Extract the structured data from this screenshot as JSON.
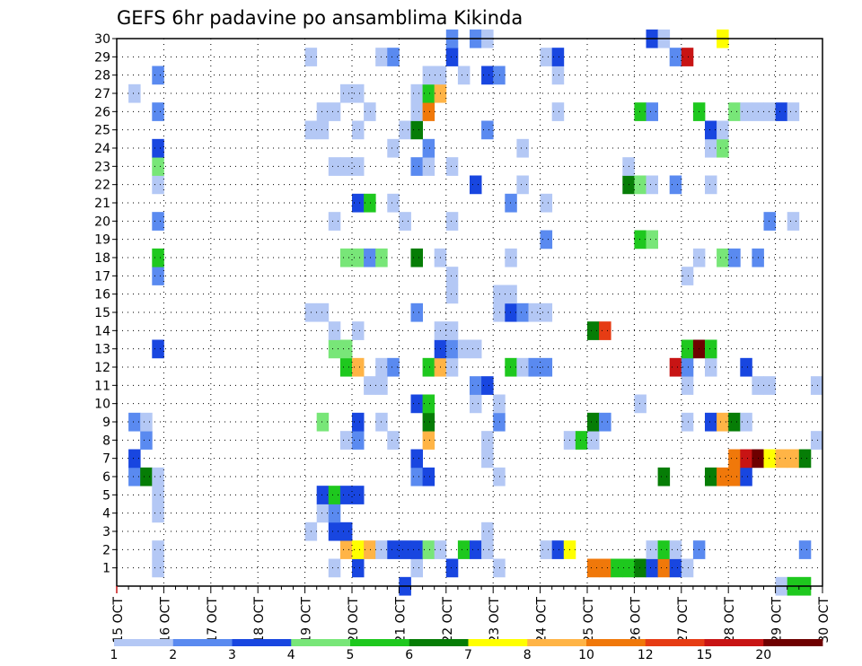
{
  "chart_data": {
    "type": "heatmap",
    "title": "GEFS 6hr padavine po ansamblima Kikinda",
    "xlabel": "",
    "ylabel": "",
    "x_ticks": [
      "15 OCT",
      "16 OCT",
      "17 OCT",
      "18 OCT",
      "19 OCT",
      "20 OCT",
      "21 OCT",
      "22 OCT",
      "23 OCT",
      "24 OCT",
      "25 OCT",
      "26 OCT",
      "27 OCT",
      "28 OCT",
      "29 OCT",
      "30 OCT"
    ],
    "y_ticks": [
      "1",
      "2",
      "3",
      "4",
      "5",
      "6",
      "7",
      "8",
      "9",
      "10",
      "11",
      "12",
      "13",
      "14",
      "15",
      "16",
      "17",
      "18",
      "19",
      "20",
      "21",
      "22",
      "23",
      "24",
      "25",
      "26",
      "27",
      "28",
      "29",
      "30"
    ],
    "xlim": [
      "15 OCT 00Z",
      "30 OCT 00Z"
    ],
    "ylim": [
      0,
      30
    ],
    "time_step_hours": 6,
    "grid": true,
    "legend": {
      "position": "bottom",
      "labels": [
        "1",
        "2",
        "3",
        "4",
        "5",
        "6",
        "7",
        "8",
        "10",
        "12",
        "15",
        "20"
      ],
      "colors": [
        "#b4c8f5",
        "#5a8af0",
        "#1846e0",
        "#78e678",
        "#1ec81e",
        "#067d06",
        "#ffff00",
        "#ffb446",
        "#f0780a",
        "#e63c14",
        "#c81414",
        "#6e0000"
      ]
    },
    "levels_key": "1=1-2 mm, 2=2-3, 3=3-4, 4=4-5, 5=5-6, 6=6-7, 7=7-8, 8=8-10, 9=10-12, 10=12-15, 11=15-20, 12=>20",
    "member_precip_levels": {
      "1": [
        [
          3,
          1
        ],
        [
          18,
          1
        ],
        [
          20,
          3
        ],
        [
          25,
          1
        ],
        [
          28,
          3
        ],
        [
          32,
          1
        ],
        [
          40,
          9
        ],
        [
          41,
          9
        ],
        [
          42,
          5
        ],
        [
          43,
          5
        ],
        [
          44,
          6
        ],
        [
          45,
          3
        ],
        [
          46,
          9
        ],
        [
          47,
          3
        ],
        [
          48,
          1
        ]
      ],
      "2": [
        [
          3,
          1
        ],
        [
          19,
          8
        ],
        [
          20,
          7
        ],
        [
          21,
          8
        ],
        [
          22,
          1
        ],
        [
          23,
          3
        ],
        [
          24,
          3
        ],
        [
          25,
          3
        ],
        [
          26,
          4
        ],
        [
          27,
          1
        ],
        [
          29,
          5
        ],
        [
          30,
          3
        ],
        [
          31,
          1
        ],
        [
          36,
          1
        ],
        [
          37,
          3
        ],
        [
          38,
          7
        ],
        [
          45,
          1
        ],
        [
          46,
          5
        ],
        [
          47,
          1
        ],
        [
          49,
          2
        ],
        [
          58,
          2
        ]
      ],
      "3": [
        [
          16,
          1
        ],
        [
          18,
          3
        ],
        [
          19,
          3
        ],
        [
          31,
          1
        ]
      ],
      "4": [
        [
          3,
          1
        ],
        [
          17,
          1
        ],
        [
          18,
          2
        ]
      ],
      "5": [
        [
          3,
          1
        ],
        [
          17,
          3
        ],
        [
          18,
          5
        ],
        [
          19,
          3
        ],
        [
          20,
          3
        ]
      ],
      "6": [
        [
          1,
          2
        ],
        [
          2,
          6
        ],
        [
          3,
          1
        ],
        [
          25,
          2
        ],
        [
          26,
          3
        ],
        [
          32,
          1
        ],
        [
          46,
          6
        ],
        [
          50,
          6
        ],
        [
          51,
          9
        ],
        [
          52,
          9
        ],
        [
          53,
          3
        ]
      ],
      "7": [
        [
          1,
          3
        ],
        [
          25,
          3
        ],
        [
          31,
          1
        ],
        [
          52,
          9
        ],
        [
          53,
          11
        ],
        [
          54,
          12
        ],
        [
          55,
          7
        ],
        [
          56,
          8
        ],
        [
          57,
          8
        ],
        [
          58,
          6
        ]
      ],
      "8": [
        [
          2,
          2
        ],
        [
          19,
          1
        ],
        [
          20,
          2
        ],
        [
          23,
          1
        ],
        [
          26,
          8
        ],
        [
          31,
          1
        ],
        [
          38,
          1
        ],
        [
          39,
          5
        ],
        [
          40,
          1
        ],
        [
          59,
          1
        ]
      ],
      "9": [
        [
          1,
          2
        ],
        [
          2,
          1
        ],
        [
          17,
          4
        ],
        [
          20,
          3
        ],
        [
          22,
          1
        ],
        [
          26,
          6
        ],
        [
          32,
          2
        ],
        [
          40,
          6
        ],
        [
          41,
          2
        ],
        [
          48,
          1
        ],
        [
          50,
          3
        ],
        [
          51,
          8
        ],
        [
          52,
          6
        ],
        [
          53,
          1
        ]
      ],
      "10": [
        [
          25,
          3
        ],
        [
          26,
          5
        ],
        [
          30,
          1
        ],
        [
          32,
          1
        ],
        [
          44,
          1
        ]
      ],
      "11": [
        [
          21,
          1
        ],
        [
          22,
          1
        ],
        [
          30,
          2
        ],
        [
          31,
          3
        ],
        [
          48,
          1
        ],
        [
          54,
          1
        ],
        [
          55,
          1
        ],
        [
          59,
          1
        ]
      ],
      "12": [
        [
          19,
          5
        ],
        [
          20,
          8
        ],
        [
          22,
          1
        ],
        [
          23,
          2
        ],
        [
          26,
          5
        ],
        [
          27,
          8
        ],
        [
          28,
          1
        ],
        [
          33,
          5
        ],
        [
          34,
          1
        ],
        [
          35,
          2
        ],
        [
          36,
          2
        ],
        [
          47,
          11
        ],
        [
          48,
          2
        ],
        [
          50,
          1
        ],
        [
          53,
          3
        ]
      ],
      "13": [
        [
          3,
          3
        ],
        [
          18,
          4
        ],
        [
          19,
          4
        ],
        [
          27,
          3
        ],
        [
          28,
          2
        ],
        [
          29,
          1
        ],
        [
          30,
          1
        ],
        [
          48,
          5
        ],
        [
          49,
          12
        ],
        [
          50,
          5
        ]
      ],
      "14": [
        [
          18,
          1
        ],
        [
          20,
          1
        ],
        [
          27,
          1
        ],
        [
          28,
          1
        ],
        [
          40,
          6
        ],
        [
          41,
          10
        ]
      ],
      "15": [
        [
          16,
          1
        ],
        [
          17,
          1
        ],
        [
          25,
          2
        ],
        [
          32,
          1
        ],
        [
          33,
          3
        ],
        [
          34,
          2
        ],
        [
          35,
          1
        ],
        [
          36,
          1
        ]
      ],
      "16": [
        [
          28,
          1
        ],
        [
          32,
          1
        ],
        [
          33,
          1
        ]
      ],
      "17": [
        [
          3,
          2
        ],
        [
          28,
          1
        ],
        [
          48,
          1
        ]
      ],
      "18": [
        [
          3,
          5
        ],
        [
          19,
          4
        ],
        [
          20,
          4
        ],
        [
          21,
          2
        ],
        [
          22,
          4
        ],
        [
          25,
          6
        ],
        [
          27,
          1
        ],
        [
          33,
          1
        ],
        [
          49,
          1
        ],
        [
          51,
          4
        ],
        [
          52,
          2
        ],
        [
          54,
          2
        ]
      ],
      "19": [
        [
          36,
          2
        ],
        [
          44,
          5
        ],
        [
          45,
          4
        ]
      ],
      "20": [
        [
          3,
          2
        ],
        [
          18,
          1
        ],
        [
          24,
          1
        ],
        [
          28,
          1
        ],
        [
          55,
          2
        ],
        [
          57,
          1
        ]
      ],
      "21": [
        [
          20,
          3
        ],
        [
          21,
          5
        ],
        [
          23,
          1
        ],
        [
          33,
          2
        ],
        [
          36,
          1
        ]
      ],
      "22": [
        [
          3,
          1
        ],
        [
          30,
          3
        ],
        [
          34,
          1
        ],
        [
          43,
          6
        ],
        [
          44,
          4
        ],
        [
          45,
          1
        ],
        [
          47,
          2
        ],
        [
          50,
          1
        ]
      ],
      "23": [
        [
          3,
          4
        ],
        [
          18,
          1
        ],
        [
          19,
          1
        ],
        [
          20,
          1
        ],
        [
          25,
          2
        ],
        [
          26,
          1
        ],
        [
          28,
          1
        ],
        [
          43,
          1
        ]
      ],
      "24": [
        [
          3,
          3
        ],
        [
          23,
          1
        ],
        [
          26,
          2
        ],
        [
          34,
          1
        ],
        [
          50,
          1
        ],
        [
          51,
          4
        ]
      ],
      "25": [
        [
          16,
          1
        ],
        [
          17,
          1
        ],
        [
          20,
          1
        ],
        [
          24,
          1
        ],
        [
          25,
          6
        ],
        [
          31,
          2
        ],
        [
          50,
          3
        ],
        [
          51,
          1
        ]
      ],
      "26": [
        [
          3,
          2
        ],
        [
          17,
          1
        ],
        [
          18,
          1
        ],
        [
          21,
          1
        ],
        [
          25,
          1
        ],
        [
          26,
          9
        ],
        [
          37,
          1
        ],
        [
          44,
          5
        ],
        [
          45,
          2
        ],
        [
          49,
          5
        ],
        [
          52,
          4
        ],
        [
          53,
          1
        ],
        [
          54,
          1
        ],
        [
          55,
          1
        ],
        [
          56,
          3
        ],
        [
          57,
          1
        ]
      ],
      "27": [
        [
          1,
          1
        ],
        [
          19,
          1
        ],
        [
          20,
          1
        ],
        [
          25,
          1
        ],
        [
          26,
          5
        ],
        [
          27,
          8
        ]
      ],
      "28": [
        [
          3,
          2
        ],
        [
          26,
          1
        ],
        [
          27,
          1
        ],
        [
          29,
          1
        ],
        [
          31,
          3
        ],
        [
          32,
          2
        ],
        [
          37,
          1
        ]
      ],
      "29": [
        [
          16,
          1
        ],
        [
          22,
          1
        ],
        [
          23,
          2
        ],
        [
          28,
          3
        ],
        [
          36,
          1
        ],
        [
          37,
          3
        ],
        [
          47,
          2
        ],
        [
          48,
          11
        ]
      ],
      "30": [
        [
          28,
          2
        ],
        [
          30,
          2
        ],
        [
          31,
          1
        ],
        [
          45,
          3
        ],
        [
          46,
          1
        ],
        [
          51,
          7
        ]
      ],
      "0": [
        [
          24,
          3
        ],
        [
          56,
          1
        ],
        [
          57,
          5
        ],
        [
          58,
          5
        ]
      ]
    }
  }
}
